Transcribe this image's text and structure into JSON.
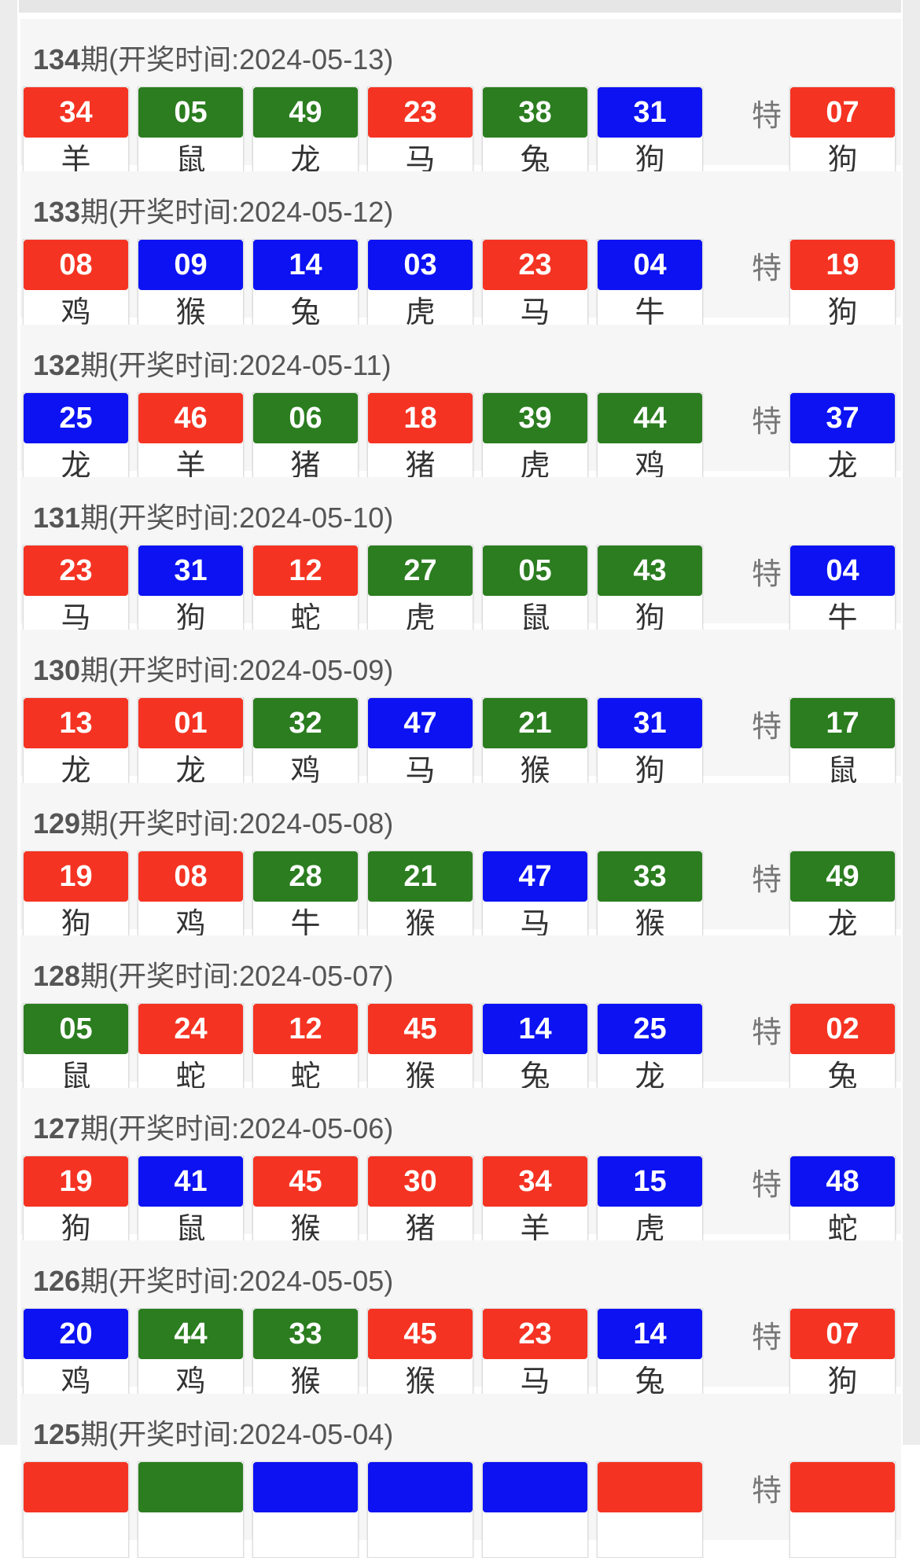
{
  "special_label": "特",
  "colors": {
    "red": "#f53322",
    "green": "#2b7d1f",
    "blue": "#0c12f2"
  },
  "draws": [
    {
      "period": "134",
      "suffix": "期",
      "date_text": "(开奖时间:2024-05-13)",
      "balls": [
        {
          "n": "34",
          "c": "red",
          "z": "羊"
        },
        {
          "n": "05",
          "c": "green",
          "z": "鼠"
        },
        {
          "n": "49",
          "c": "green",
          "z": "龙"
        },
        {
          "n": "23",
          "c": "red",
          "z": "马"
        },
        {
          "n": "38",
          "c": "green",
          "z": "兔"
        },
        {
          "n": "31",
          "c": "blue",
          "z": "狗"
        }
      ],
      "special": {
        "n": "07",
        "c": "red",
        "z": "狗"
      }
    },
    {
      "period": "133",
      "suffix": "期",
      "date_text": "(开奖时间:2024-05-12)",
      "balls": [
        {
          "n": "08",
          "c": "red",
          "z": "鸡"
        },
        {
          "n": "09",
          "c": "blue",
          "z": "猴"
        },
        {
          "n": "14",
          "c": "blue",
          "z": "兔"
        },
        {
          "n": "03",
          "c": "blue",
          "z": "虎"
        },
        {
          "n": "23",
          "c": "red",
          "z": "马"
        },
        {
          "n": "04",
          "c": "blue",
          "z": "牛"
        }
      ],
      "special": {
        "n": "19",
        "c": "red",
        "z": "狗"
      }
    },
    {
      "period": "132",
      "suffix": "期",
      "date_text": "(开奖时间:2024-05-11)",
      "balls": [
        {
          "n": "25",
          "c": "blue",
          "z": "龙"
        },
        {
          "n": "46",
          "c": "red",
          "z": "羊"
        },
        {
          "n": "06",
          "c": "green",
          "z": "猪"
        },
        {
          "n": "18",
          "c": "red",
          "z": "猪"
        },
        {
          "n": "39",
          "c": "green",
          "z": "虎"
        },
        {
          "n": "44",
          "c": "green",
          "z": "鸡"
        }
      ],
      "special": {
        "n": "37",
        "c": "blue",
        "z": "龙"
      }
    },
    {
      "period": "131",
      "suffix": "期",
      "date_text": "(开奖时间:2024-05-10)",
      "balls": [
        {
          "n": "23",
          "c": "red",
          "z": "马"
        },
        {
          "n": "31",
          "c": "blue",
          "z": "狗"
        },
        {
          "n": "12",
          "c": "red",
          "z": "蛇"
        },
        {
          "n": "27",
          "c": "green",
          "z": "虎"
        },
        {
          "n": "05",
          "c": "green",
          "z": "鼠"
        },
        {
          "n": "43",
          "c": "green",
          "z": "狗"
        }
      ],
      "special": {
        "n": "04",
        "c": "blue",
        "z": "牛"
      }
    },
    {
      "period": "130",
      "suffix": "期",
      "date_text": "(开奖时间:2024-05-09)",
      "balls": [
        {
          "n": "13",
          "c": "red",
          "z": "龙"
        },
        {
          "n": "01",
          "c": "red",
          "z": "龙"
        },
        {
          "n": "32",
          "c": "green",
          "z": "鸡"
        },
        {
          "n": "47",
          "c": "blue",
          "z": "马"
        },
        {
          "n": "21",
          "c": "green",
          "z": "猴"
        },
        {
          "n": "31",
          "c": "blue",
          "z": "狗"
        }
      ],
      "special": {
        "n": "17",
        "c": "green",
        "z": "鼠"
      }
    },
    {
      "period": "129",
      "suffix": "期",
      "date_text": "(开奖时间:2024-05-08)",
      "balls": [
        {
          "n": "19",
          "c": "red",
          "z": "狗"
        },
        {
          "n": "08",
          "c": "red",
          "z": "鸡"
        },
        {
          "n": "28",
          "c": "green",
          "z": "牛"
        },
        {
          "n": "21",
          "c": "green",
          "z": "猴"
        },
        {
          "n": "47",
          "c": "blue",
          "z": "马"
        },
        {
          "n": "33",
          "c": "green",
          "z": "猴"
        }
      ],
      "special": {
        "n": "49",
        "c": "green",
        "z": "龙"
      }
    },
    {
      "period": "128",
      "suffix": "期",
      "date_text": "(开奖时间:2024-05-07)",
      "balls": [
        {
          "n": "05",
          "c": "green",
          "z": "鼠"
        },
        {
          "n": "24",
          "c": "red",
          "z": "蛇"
        },
        {
          "n": "12",
          "c": "red",
          "z": "蛇"
        },
        {
          "n": "45",
          "c": "red",
          "z": "猴"
        },
        {
          "n": "14",
          "c": "blue",
          "z": "兔"
        },
        {
          "n": "25",
          "c": "blue",
          "z": "龙"
        }
      ],
      "special": {
        "n": "02",
        "c": "red",
        "z": "兔"
      }
    },
    {
      "period": "127",
      "suffix": "期",
      "date_text": "(开奖时间:2024-05-06)",
      "balls": [
        {
          "n": "19",
          "c": "red",
          "z": "狗"
        },
        {
          "n": "41",
          "c": "blue",
          "z": "鼠"
        },
        {
          "n": "45",
          "c": "red",
          "z": "猴"
        },
        {
          "n": "30",
          "c": "red",
          "z": "猪"
        },
        {
          "n": "34",
          "c": "red",
          "z": "羊"
        },
        {
          "n": "15",
          "c": "blue",
          "z": "虎"
        }
      ],
      "special": {
        "n": "48",
        "c": "blue",
        "z": "蛇"
      }
    },
    {
      "period": "126",
      "suffix": "期",
      "date_text": "(开奖时间:2024-05-05)",
      "balls": [
        {
          "n": "20",
          "c": "blue",
          "z": "鸡"
        },
        {
          "n": "44",
          "c": "green",
          "z": "鸡"
        },
        {
          "n": "33",
          "c": "green",
          "z": "猴"
        },
        {
          "n": "45",
          "c": "red",
          "z": "猴"
        },
        {
          "n": "23",
          "c": "red",
          "z": "马"
        },
        {
          "n": "14",
          "c": "blue",
          "z": "兔"
        }
      ],
      "special": {
        "n": "07",
        "c": "red",
        "z": "狗"
      }
    },
    {
      "period": "125",
      "suffix": "期",
      "date_text": "(开奖时间:2024-05-04)",
      "balls": [
        {
          "c": "red"
        },
        {
          "c": "green"
        },
        {
          "c": "blue"
        },
        {
          "c": "blue"
        },
        {
          "c": "blue"
        },
        {
          "c": "red"
        }
      ],
      "special": {
        "c": "red"
      }
    }
  ]
}
